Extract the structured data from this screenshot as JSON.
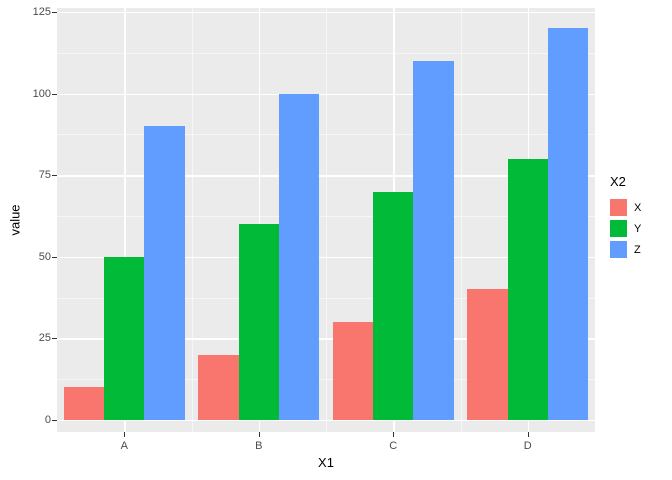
{
  "chart_data": {
    "type": "bar",
    "bar_layout": "dodge",
    "title": "",
    "xlabel": "X1",
    "ylabel": "value",
    "categories": [
      "A",
      "B",
      "C",
      "D"
    ],
    "series": [
      {
        "name": "X",
        "color": "#F8766D",
        "values": [
          10,
          20,
          30,
          40
        ]
      },
      {
        "name": "Y",
        "color": "#00BA38",
        "values": [
          50,
          60,
          70,
          80
        ]
      },
      {
        "name": "Z",
        "color": "#619CFF",
        "values": [
          90,
          100,
          110,
          120
        ]
      }
    ],
    "ylim": [
      0,
      125
    ],
    "yticks": [
      0,
      25,
      50,
      75,
      100,
      125
    ],
    "legend_title": "X2",
    "legend_position": "right",
    "grid": true,
    "colors": {
      "panel_bg": "#EBEBEB",
      "grid_major": "#FFFFFF",
      "grid_minor": "#FFFFFF",
      "tick_text": "#4D4D4D",
      "title_text": "#000000"
    }
  }
}
